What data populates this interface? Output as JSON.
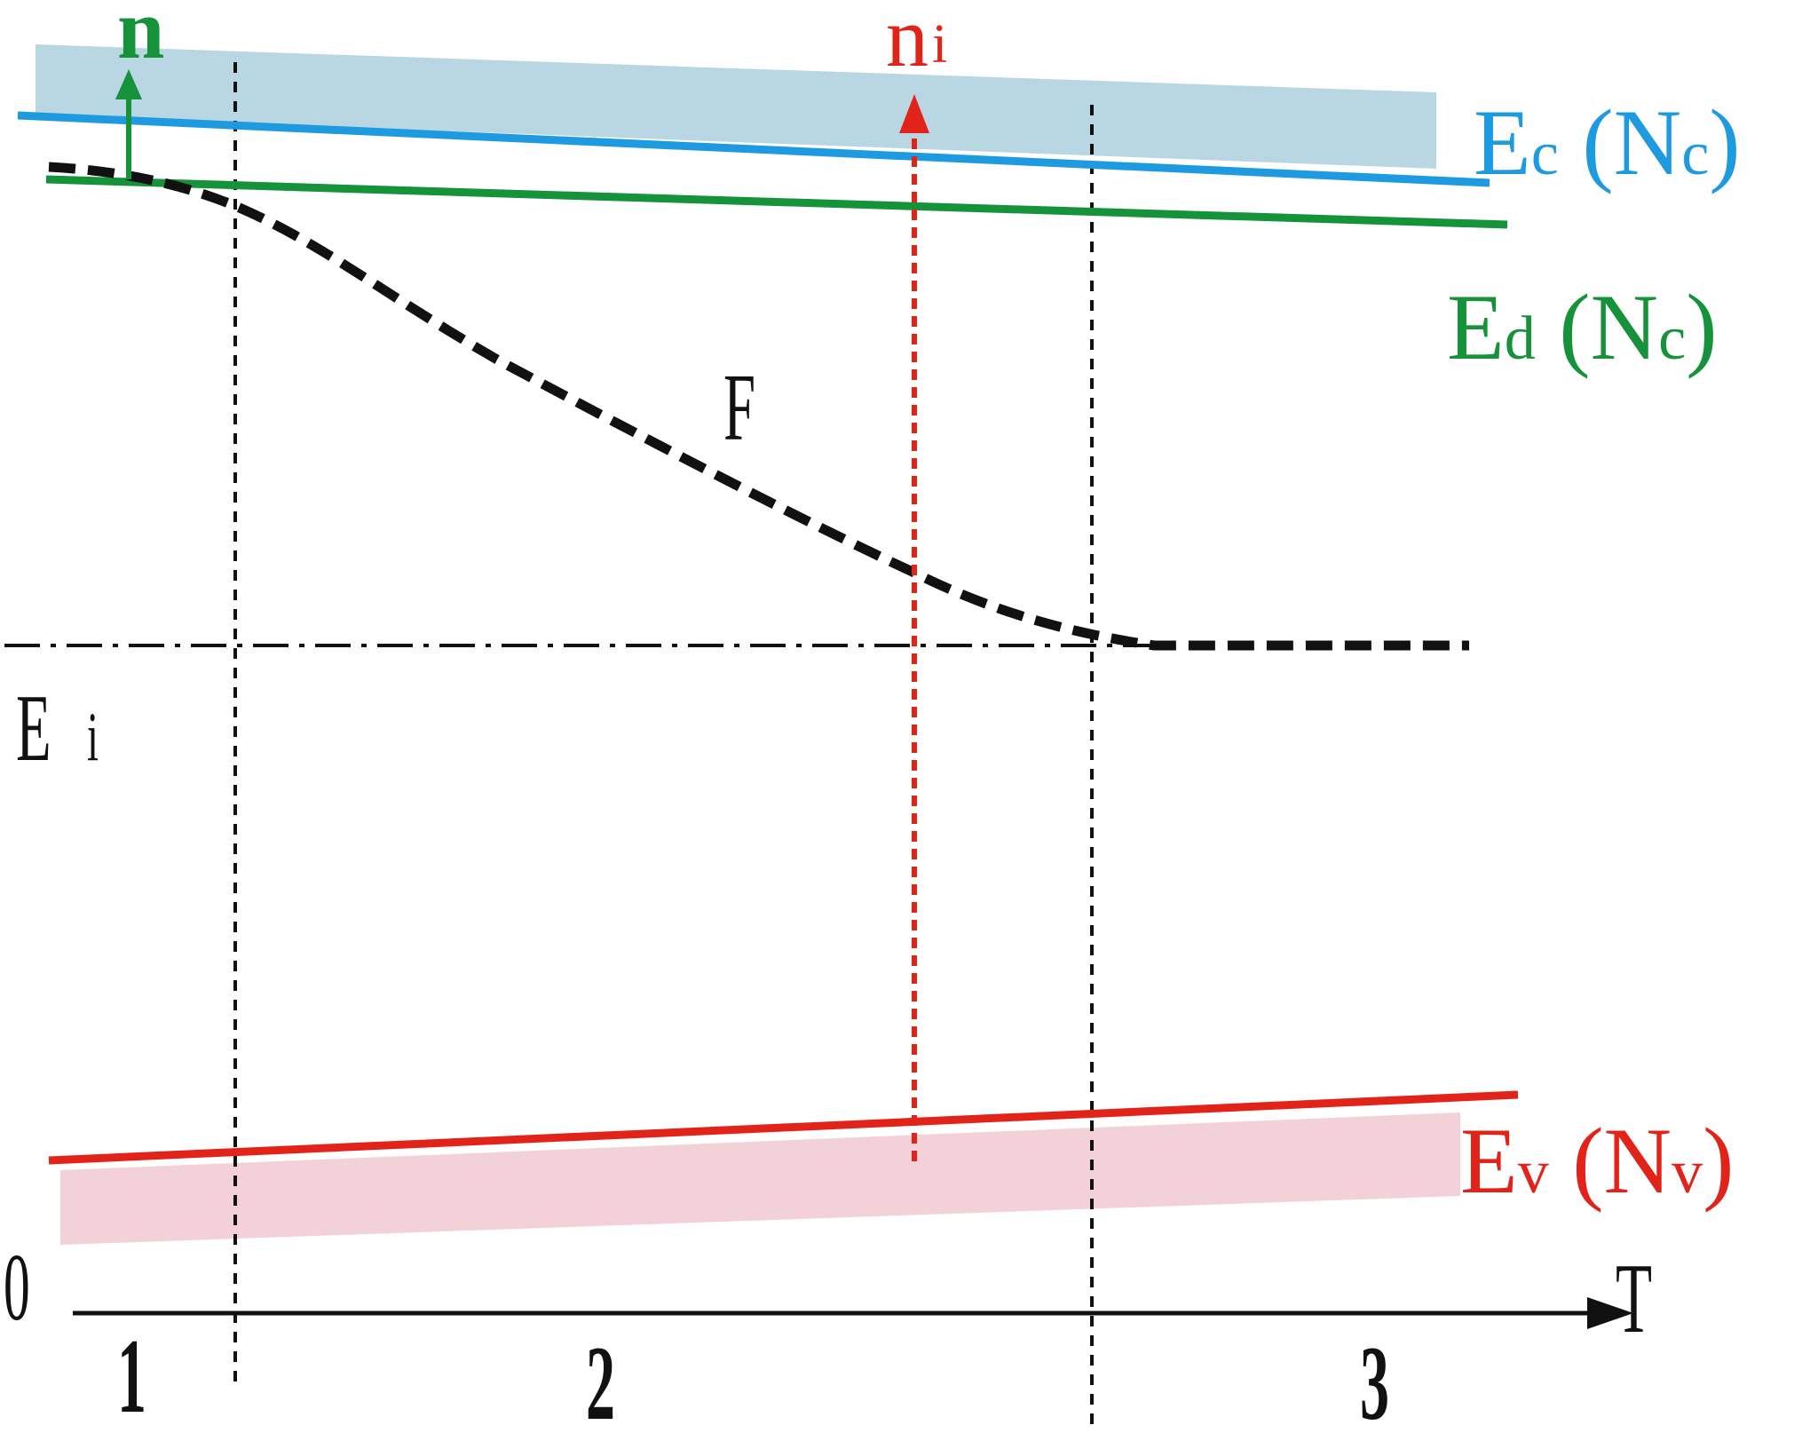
{
  "colors": {
    "conduction": "#1e9ae0",
    "conduction_band_fill": "#b9d6e3",
    "donor": "#15923a",
    "valence": "#e2231a",
    "valence_band_fill": "#f3d1d8",
    "fermi": "#111111",
    "guides": "#111111"
  },
  "labels": {
    "n": "n",
    "ni_main": "n",
    "ni_sub": "i",
    "ec_main": "E",
    "ec_sub": "c",
    "ec_paren_open": " (N",
    "ec_paren_sub": "c",
    "ec_paren_close": ")",
    "ed_main": "E",
    "ed_sub": "d",
    "ed_paren_open": " (N",
    "ed_paren_sub": "c",
    "ed_paren_close": ")",
    "ev_main": "E",
    "ev_sub": "v",
    "ev_paren_open": " (N",
    "ev_paren_sub": "v",
    "ev_paren_close": ")",
    "fermi": "F",
    "ei_main": "E",
    "ei_sub": "i",
    "origin": "0",
    "axis_t": "T",
    "region_1": "1",
    "region_2": "2",
    "region_3": "3"
  },
  "icons": {
    "n_arrow": "up-arrow-icon",
    "ni_arrow": "dashed-up-arrow-icon",
    "t_axis_arrow": "right-arrow-icon"
  }
}
